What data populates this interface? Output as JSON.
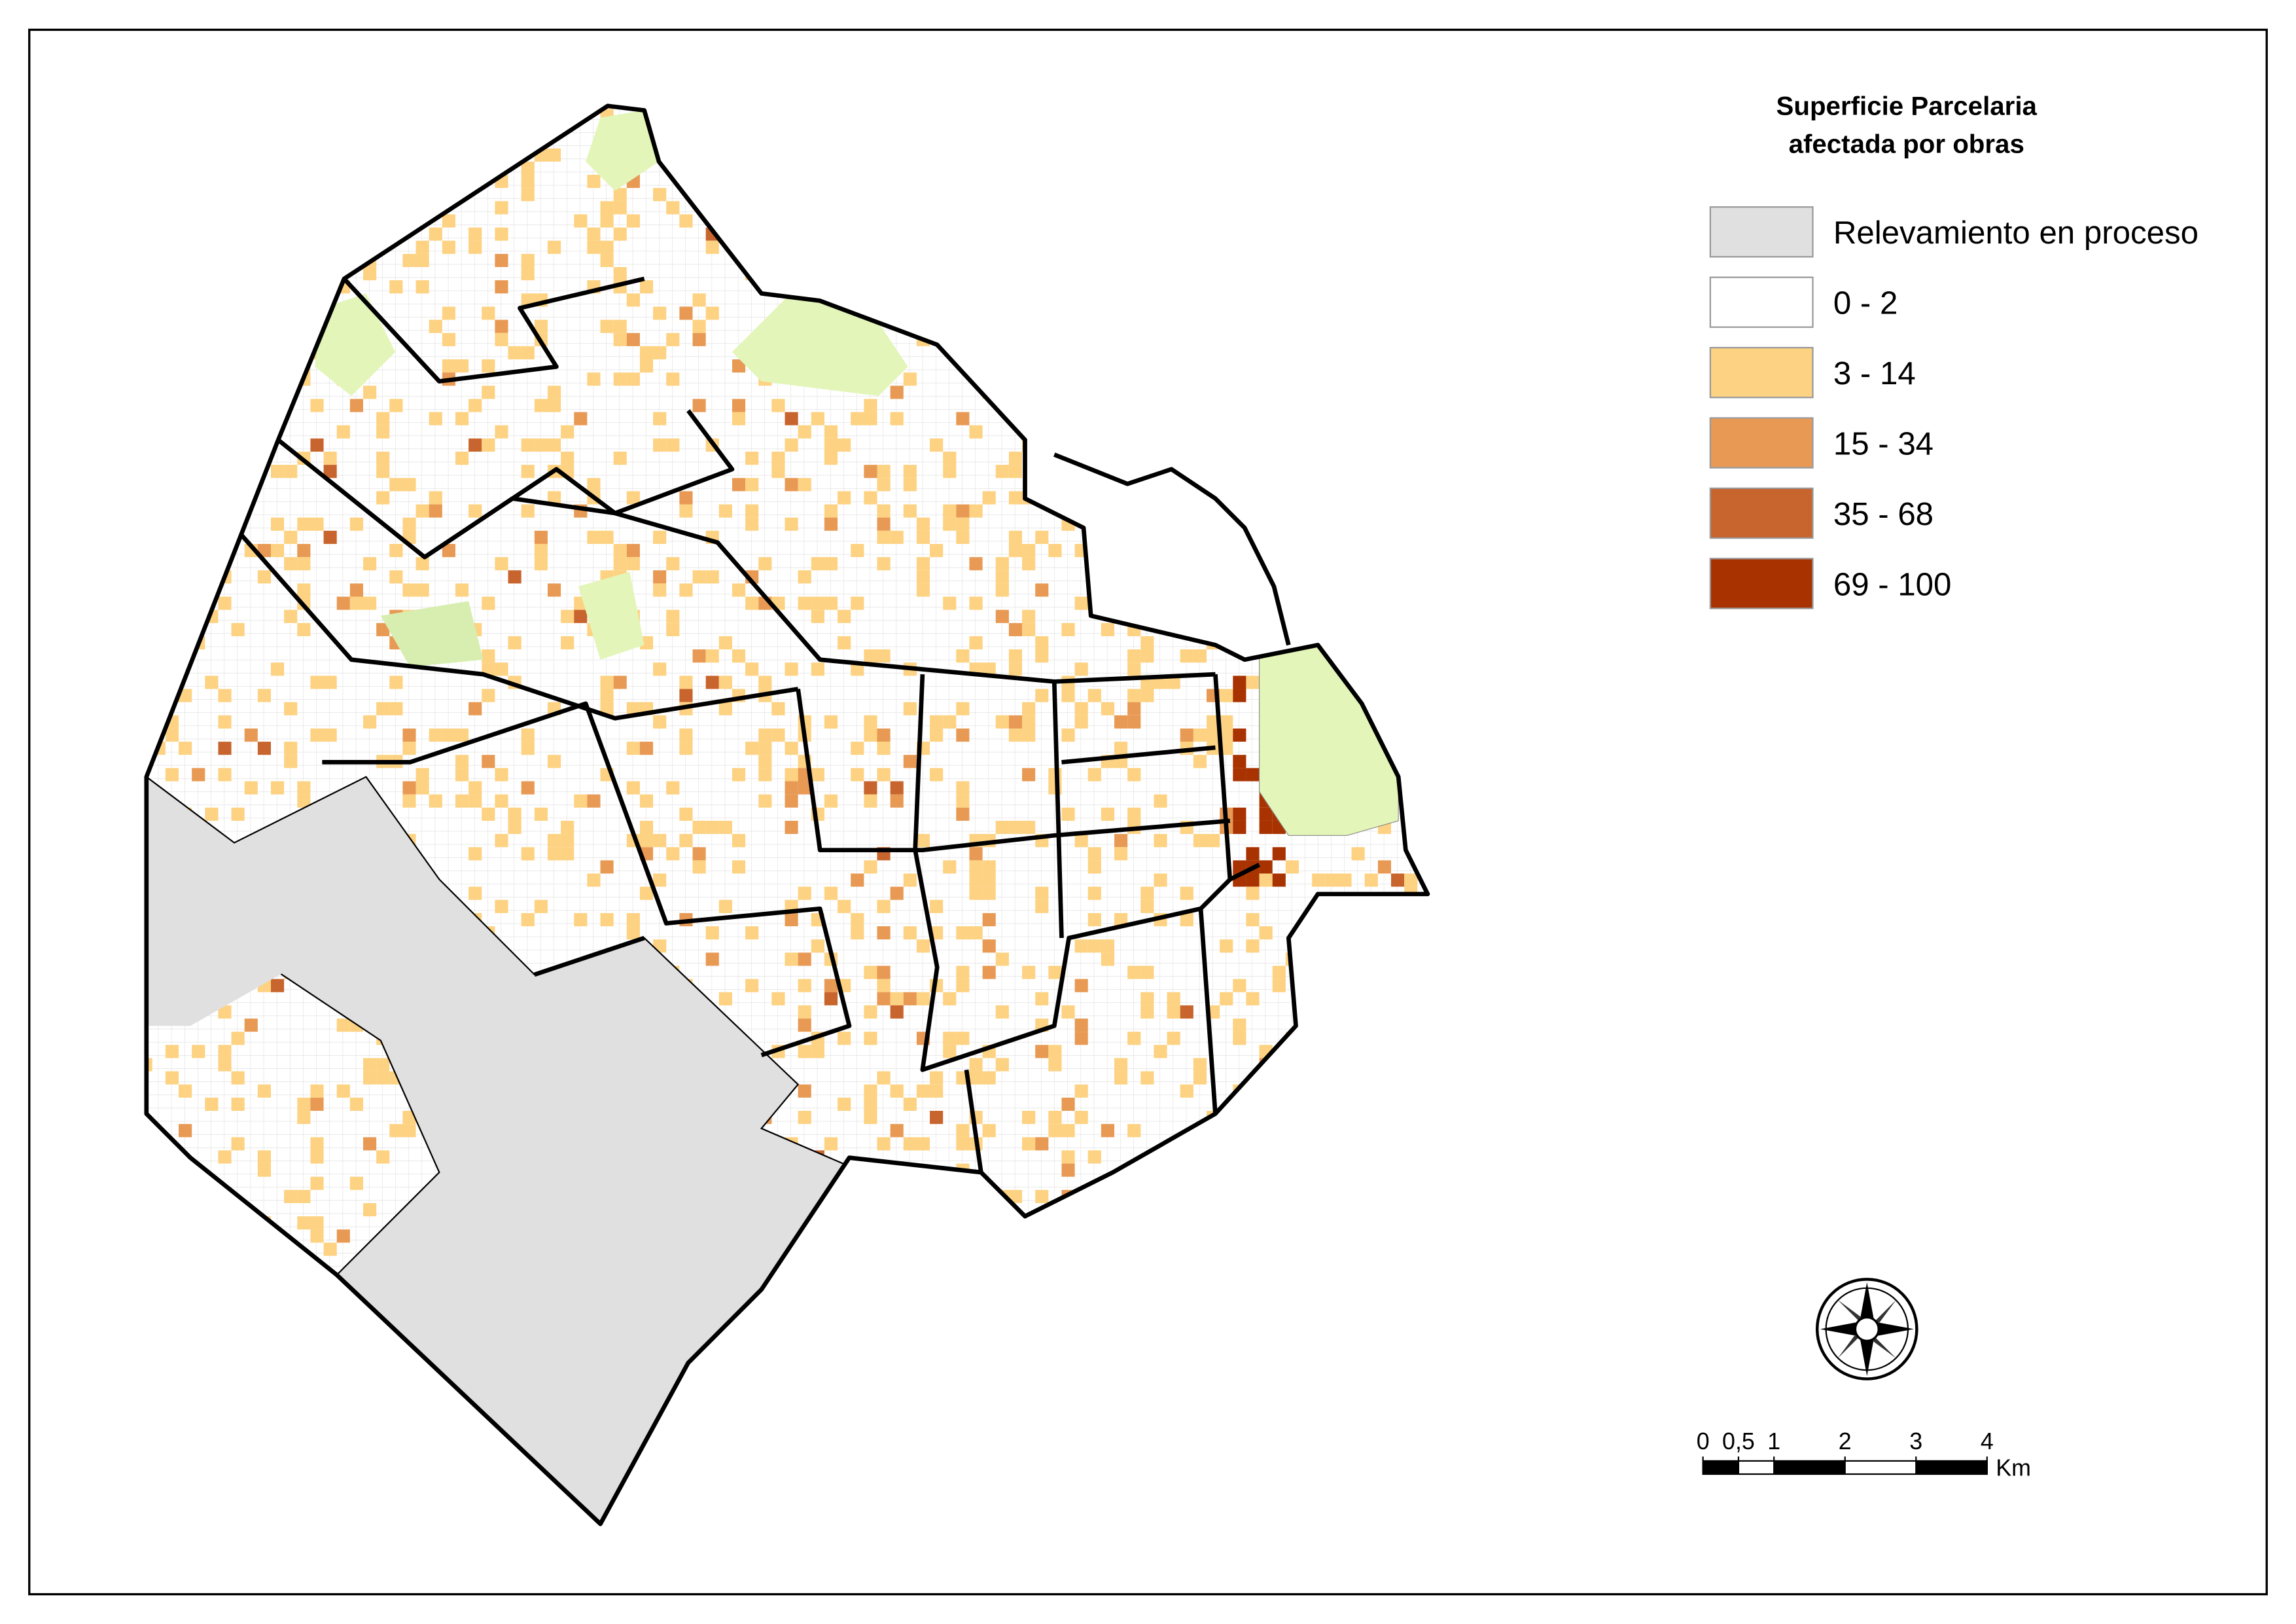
{
  "legend": {
    "title": [
      "Superficie Parcelaria",
      "afectada por obras"
    ],
    "items": [
      {
        "label": "Relevamiento en proceso",
        "color": "#e0e0e0"
      },
      {
        "label": "0 - 2",
        "color": "#ffffff"
      },
      {
        "label": "3 - 14",
        "color": "#fdd282"
      },
      {
        "label": "15 - 34",
        "color": "#e89a55"
      },
      {
        "label": "35 - 68",
        "color": "#c8652e"
      },
      {
        "label": "69 - 100",
        "color": "#a83300"
      }
    ]
  },
  "scale_bar": {
    "ticks": [
      0,
      {
        "value": 0.5,
        "label": "0,5"
      },
      1,
      2,
      3,
      4
    ],
    "unit": "Km"
  }
}
